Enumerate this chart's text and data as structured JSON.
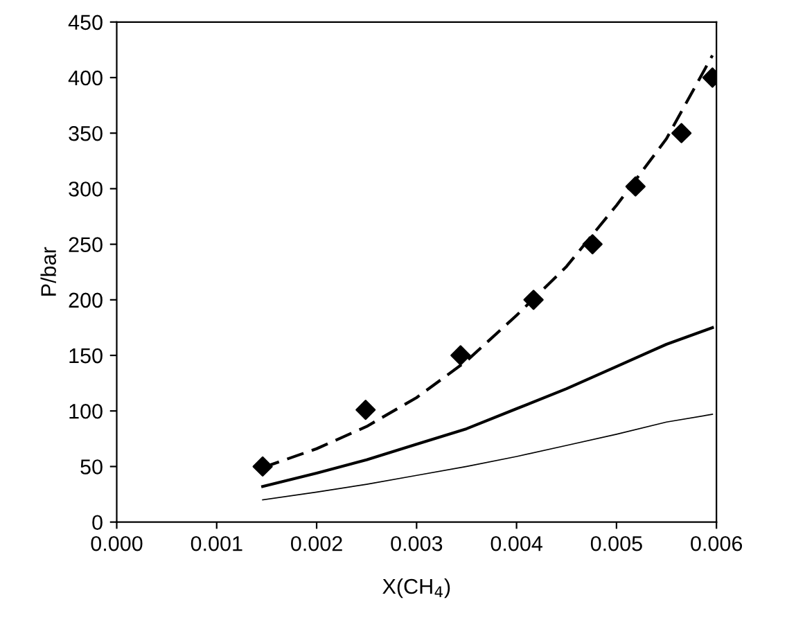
{
  "chart_data": {
    "type": "line",
    "xlabel": "X(CH$_{4}$)",
    "ylabel": "P/bar",
    "xlim": [
      0,
      0.006
    ],
    "ylim": [
      0,
      450
    ],
    "xticks": [
      {
        "value": 0,
        "label": "0.000"
      },
      {
        "value": 0.001,
        "label": "0.001"
      },
      {
        "value": 0.002,
        "label": "0.002"
      },
      {
        "value": 0.003,
        "label": "0.003"
      },
      {
        "value": 0.004,
        "label": "0.004"
      },
      {
        "value": 0.005,
        "label": "0.005"
      },
      {
        "value": 0.006,
        "label": "0.006"
      }
    ],
    "yticks": [
      0,
      50,
      100,
      150,
      200,
      250,
      300,
      350,
      400,
      450
    ],
    "grid": false,
    "series": [
      {
        "type": "scatter",
        "marker": "diamond",
        "color": "#000000",
        "x": [
          0.00146,
          0.00249,
          0.00344,
          0.00417,
          0.00476,
          0.00519,
          0.00565,
          0.00596
        ],
        "values": [
          50,
          101,
          150,
          200,
          250,
          302,
          350,
          400
        ]
      },
      {
        "line_style": "dashed",
        "color": "#000000",
        "x": [
          0.00146,
          0.002,
          0.0025,
          0.003,
          0.0035,
          0.004,
          0.0045,
          0.005,
          0.0055,
          0.00596
        ],
        "values": [
          49,
          66,
          86,
          112,
          145,
          186,
          230,
          285,
          345,
          420
        ]
      },
      {
        "line_style": "solid",
        "color": "#000000",
        "x": [
          0.00146,
          0.002,
          0.0025,
          0.003,
          0.0035,
          0.004,
          0.0045,
          0.005,
          0.0055,
          0.00596
        ],
        "values": [
          32,
          44,
          56,
          70,
          84,
          102,
          120,
          140,
          160,
          175
        ]
      },
      {
        "line_style": "solid",
        "color": "#000000",
        "x": [
          0.00146,
          0.002,
          0.0025,
          0.003,
          0.0035,
          0.004,
          0.0045,
          0.005,
          0.0055,
          0.00596
        ],
        "values": [
          20,
          27,
          34,
          42,
          50,
          59,
          69,
          79,
          90,
          97
        ]
      }
    ]
  }
}
